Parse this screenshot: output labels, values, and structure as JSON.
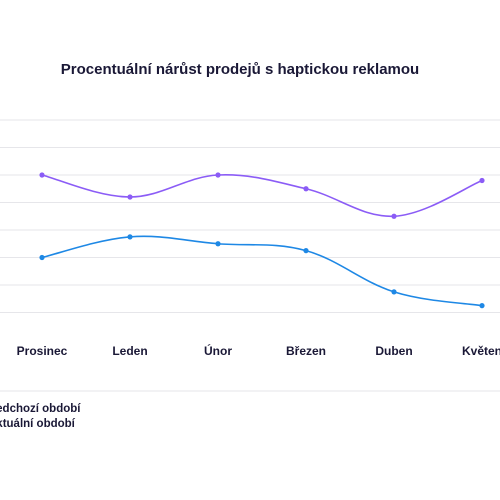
{
  "chart_data": {
    "type": "line",
    "title": "Procentuální nárůst prodejů s haptickou reklamou",
    "categories": [
      "Prosinec",
      "Leden",
      "Únor",
      "Březen",
      "Duben",
      "Květen"
    ],
    "series": [
      {
        "name": "Předchozí období",
        "color": "#8b5cf6",
        "values": [
          50,
          42,
          50,
          45,
          35,
          48
        ]
      },
      {
        "name": "Aktuální období",
        "color": "#1e88e5",
        "values": [
          20,
          27.5,
          25,
          22.5,
          7.5,
          2.5
        ]
      }
    ],
    "ylim": [
      -10,
      70
    ],
    "grid": true,
    "legend_position": "bottom-left"
  },
  "legend": {
    "item1": "Předchozí období",
    "item2": "Aktuální období"
  }
}
